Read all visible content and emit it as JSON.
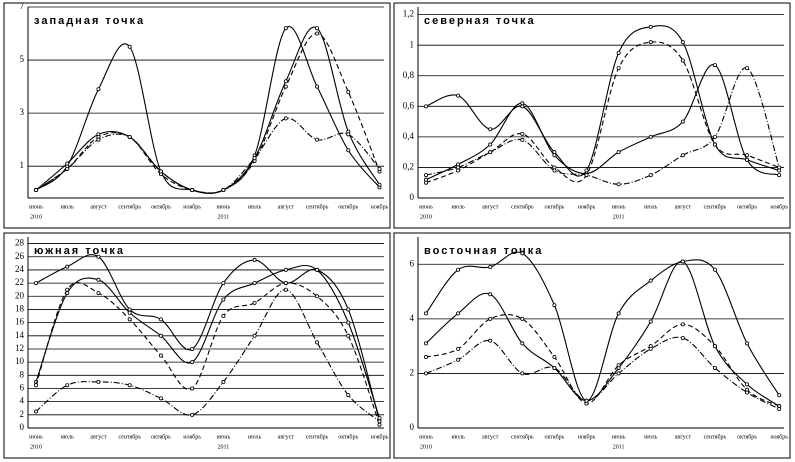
{
  "chart_data": [
    {
      "type": "line",
      "title": "западная точка",
      "categories": [
        "июнь",
        "июль",
        "август",
        "сентябрь",
        "октябрь",
        "ноябрь",
        "июнь",
        "июль",
        "август",
        "сентябрь",
        "октябрь",
        "ноябрь"
      ],
      "years": [
        {
          "index": 0,
          "label": "2010"
        },
        {
          "index": 6,
          "label": "2011"
        }
      ],
      "ylim": [
        -0.2,
        7
      ],
      "yticks": [
        1,
        3,
        5,
        7
      ],
      "grid": true,
      "series": [
        {
          "color": "#000",
          "style": "solid",
          "values": [
            0.1,
            1.0,
            3.9,
            5.5,
            0.8,
            0.1,
            0.1,
            1.4,
            6.2,
            4.0,
            1.6,
            0.2
          ]
        },
        {
          "color": "#000",
          "style": "solid",
          "values": [
            0.1,
            1.1,
            2.2,
            2.1,
            0.8,
            0.1,
            0.1,
            1.3,
            4.2,
            6.2,
            2.3,
            0.3
          ]
        },
        {
          "color": "#000",
          "style": "dashed",
          "values": [
            0.1,
            0.9,
            2.1,
            2.1,
            0.7,
            0.1,
            0.1,
            1.2,
            4.0,
            6.0,
            3.8,
            0.8
          ]
        },
        {
          "color": "#000",
          "style": "dashdot",
          "values": [
            0.1,
            0.9,
            2.0,
            2.1,
            0.8,
            0.1,
            0.1,
            1.3,
            2.8,
            2.0,
            2.2,
            0.9
          ]
        }
      ]
    },
    {
      "type": "line",
      "title": "северная точка",
      "categories": [
        "июнь",
        "июль",
        "август",
        "сентябрь",
        "октябрь",
        "ноябрь",
        "июнь",
        "июль",
        "август",
        "сентябрь",
        "октябрь",
        "ноябрь"
      ],
      "years": [
        {
          "index": 0,
          "label": "2010"
        },
        {
          "index": 6,
          "label": "2011"
        }
      ],
      "ylim": [
        0,
        1.25
      ],
      "yticks": [
        0,
        {
          "value": 0.2,
          "label": "0,2"
        },
        {
          "value": 0.4,
          "label": "0,4"
        },
        {
          "value": 0.6,
          "label": "0,6"
        },
        {
          "value": 0.8,
          "label": "0,8"
        },
        1,
        {
          "value": 1.2,
          "label": "1,2"
        }
      ],
      "grid": true,
      "series": [
        {
          "color": "#000",
          "style": "solid",
          "values": [
            0.6,
            0.67,
            0.45,
            0.6,
            0.3,
            0.18,
            0.95,
            1.12,
            1.02,
            0.35,
            0.25,
            0.18
          ]
        },
        {
          "color": "#000",
          "style": "solid",
          "values": [
            0.12,
            0.22,
            0.35,
            0.62,
            0.28,
            0.16,
            0.3,
            0.4,
            0.5,
            0.87,
            0.25,
            0.15
          ]
        },
        {
          "color": "#000",
          "style": "dashed",
          "values": [
            0.1,
            0.18,
            0.3,
            0.42,
            0.2,
            0.15,
            0.85,
            1.02,
            0.9,
            0.35,
            0.28,
            0.2
          ]
        },
        {
          "color": "#000",
          "style": "dashdot",
          "values": [
            0.15,
            0.2,
            0.3,
            0.38,
            0.18,
            0.15,
            0.09,
            0.15,
            0.28,
            0.4,
            0.85,
            0.2
          ]
        }
      ]
    },
    {
      "type": "line",
      "title": "южная точка",
      "categories": [
        "июнь",
        "июль",
        "август",
        "сентябрь",
        "октябрь",
        "ноябрь",
        "июнь",
        "июль",
        "август",
        "сентябрь",
        "октябрь",
        "ноябрь"
      ],
      "years": [
        {
          "index": 0,
          "label": "2010"
        },
        {
          "index": 6,
          "label": "2011"
        }
      ],
      "ylim": [
        0,
        29
      ],
      "yticks": [
        0,
        2,
        4,
        6,
        8,
        10,
        12,
        14,
        16,
        18,
        20,
        22,
        24,
        26,
        28
      ],
      "grid": true,
      "series": [
        {
          "color": "#000",
          "style": "solid",
          "values": [
            22,
            24.5,
            26,
            18,
            16.5,
            12,
            22,
            25.5,
            22,
            24,
            18,
            1
          ]
        },
        {
          "color": "#000",
          "style": "solid",
          "values": [
            7,
            20.5,
            22.5,
            17.5,
            14,
            10,
            19.5,
            22,
            24,
            24,
            16,
            1.5
          ]
        },
        {
          "color": "#000",
          "style": "dashed",
          "values": [
            6.5,
            21,
            20.5,
            16.5,
            11,
            6,
            17,
            19,
            22,
            20,
            14,
            0.5
          ]
        },
        {
          "color": "#000",
          "style": "dashdot",
          "values": [
            2.5,
            6.5,
            7,
            6.5,
            4.5,
            2,
            7,
            14,
            21,
            13,
            5,
            1
          ]
        }
      ]
    },
    {
      "type": "line",
      "title": "восточная точка",
      "categories": [
        "июнь",
        "июль",
        "август",
        "сентябрь",
        "октябрь",
        "ноябрь",
        "июнь",
        "июль",
        "август",
        "сентябрь",
        "октябрь",
        "ноябрь"
      ],
      "years": [
        {
          "index": 0,
          "label": "2010"
        },
        {
          "index": 6,
          "label": "2011"
        }
      ],
      "ylim": [
        0,
        7
      ],
      "yticks": [
        0,
        2,
        4,
        6
      ],
      "grid": true,
      "series": [
        {
          "color": "#000",
          "style": "solid",
          "values": [
            4.2,
            5.8,
            5.9,
            6.4,
            4.5,
            1,
            4.2,
            5.4,
            6.1,
            5.8,
            3.1,
            1.2
          ]
        },
        {
          "color": "#000",
          "style": "solid",
          "values": [
            3.1,
            4.2,
            4.9,
            3.1,
            2.2,
            1,
            2.2,
            3.9,
            6.1,
            3.0,
            1.6,
            0.8
          ]
        },
        {
          "color": "#000",
          "style": "dashed",
          "values": [
            2.6,
            2.9,
            4.0,
            4.0,
            2.6,
            0.9,
            2.3,
            3.0,
            3.8,
            3.0,
            1.4,
            0.8
          ]
        },
        {
          "color": "#000",
          "style": "dashdot",
          "values": [
            2.0,
            2.5,
            3.2,
            2.0,
            2.2,
            1.0,
            2.0,
            2.9,
            3.3,
            2.2,
            1.3,
            0.7
          ]
        }
      ]
    }
  ]
}
